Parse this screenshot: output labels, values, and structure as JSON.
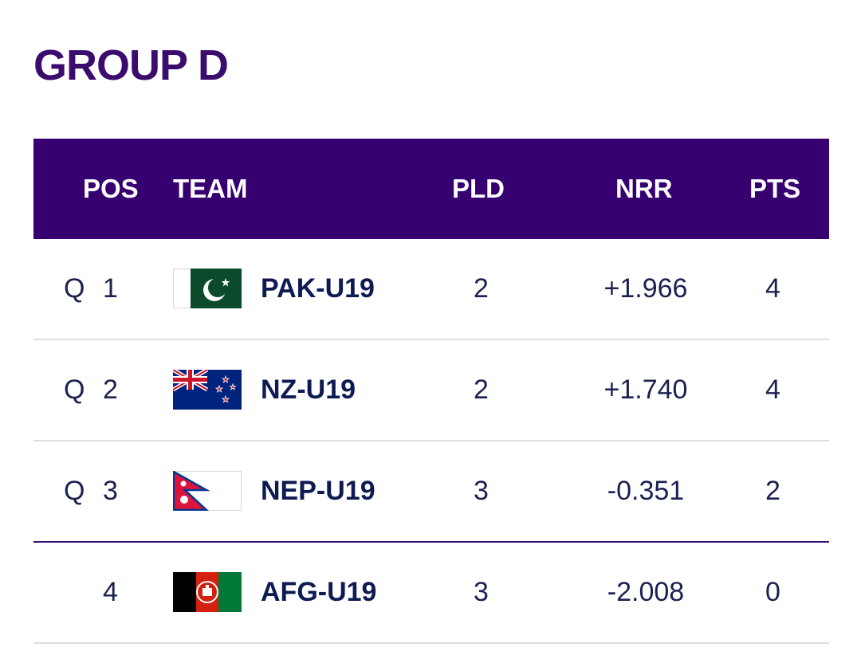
{
  "group_title": "GROUP D",
  "headers": {
    "pos": "POS",
    "team": "TEAM",
    "pld": "PLD",
    "nrr": "NRR",
    "pts": "PTS"
  },
  "rows": [
    {
      "q": "Q",
      "pos": "1",
      "flag": "pakistan-flag-icon",
      "team": "PAK-U19",
      "pld": "2",
      "nrr": "+1.966",
      "pts": "4"
    },
    {
      "q": "Q",
      "pos": "2",
      "flag": "new-zealand-flag-icon",
      "team": "NZ-U19",
      "pld": "2",
      "nrr": "+1.740",
      "pts": "4"
    },
    {
      "q": "Q",
      "pos": "3",
      "flag": "nepal-flag-icon",
      "team": "NEP-U19",
      "pld": "3",
      "nrr": "-0.351",
      "pts": "2"
    },
    {
      "q": "",
      "pos": "4",
      "flag": "afghanistan-flag-icon",
      "team": "AFG-U19",
      "pld": "3",
      "nrr": "-2.008",
      "pts": "0"
    }
  ],
  "colors": {
    "title": "#3a0c6e",
    "header_bg": "#370070",
    "text": "#1b2150",
    "divider": "#dcdcdf",
    "cutoff_line": "#3a0c6e"
  }
}
